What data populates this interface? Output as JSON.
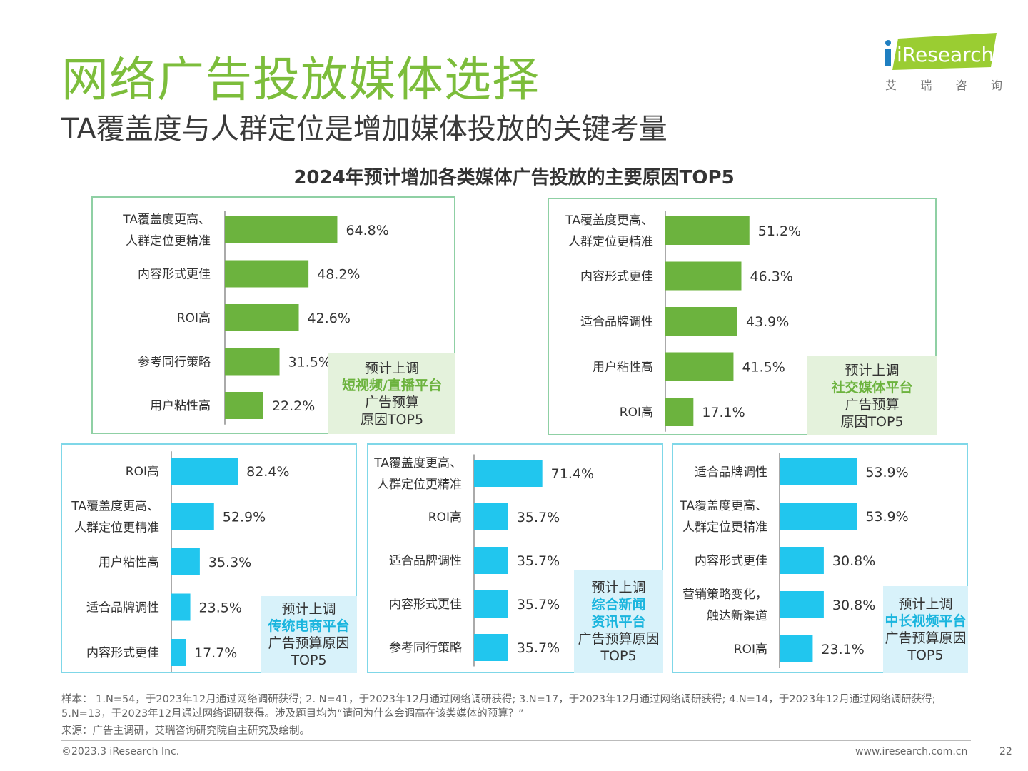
{
  "page": {
    "title": "网络广告投放媒体选择",
    "subtitle": "TA覆盖度与人群定位是增加媒体投放的关键考量",
    "logo": {
      "brand": "iResearch",
      "cn": [
        "艾",
        "瑞",
        "咨",
        "询"
      ]
    },
    "footnote": "样本： 1.N=54，于2023年12月通过网络调研获得; 2. N=41，于2023年12月通过网络调研获得; 3.N=17，于2023年12月通过网络调研获得; 4.N=14，于2023年12月通过网络调研获得; 5.N=13，于2023年12月通过网络调研获得。涉及题目均为“请问为什么会调高在该类媒体的预算？”",
    "source": "来源：广告主调研，艾瑞咨询研究院自主研究及绘制。",
    "copyright": "©2023.3 iResearch Inc.",
    "url": "www.iresearch.com.cn",
    "page_number": "22"
  },
  "colors": {
    "green": "#6cb33e",
    "blue": "#21c6ee",
    "title_green": "#7cbd3b"
  },
  "chart_data": [
    {
      "type": "bar",
      "title": "2024年预计增加各类媒体广告投放的主要原因TOP5",
      "panel": "green",
      "categories": [
        "TA覆盖度更高、\n人群定位更精准",
        "内容形式更佳",
        "ROI高",
        "参考同行策略",
        "用户粘性高"
      ],
      "values": [
        64.8,
        48.2,
        42.6,
        31.5,
        22.2
      ],
      "value_labels": [
        "64.8%",
        "48.2%",
        "42.6%",
        "31.5%",
        "22.2%"
      ],
      "xlim": [
        0,
        100
      ],
      "note": {
        "pre": "预计上调",
        "highlight": "短视频/直播平台",
        "post": [
          "广告预算",
          "原因TOP5"
        ]
      }
    },
    {
      "type": "bar",
      "panel": "green",
      "categories": [
        "TA覆盖度更高、\n人群定位更精准",
        "内容形式更佳",
        "适合品牌调性",
        "用户粘性高",
        "ROI高"
      ],
      "values": [
        51.2,
        46.3,
        43.9,
        41.5,
        17.1
      ],
      "value_labels": [
        "51.2%",
        "46.3%",
        "43.9%",
        "41.5%",
        "17.1%"
      ],
      "xlim": [
        0,
        100
      ],
      "note": {
        "pre": "预计上调",
        "highlight": "社交媒体平台",
        "post": [
          "广告预算",
          "原因TOP5"
        ]
      }
    },
    {
      "type": "bar",
      "panel": "blue",
      "categories": [
        "ROI高",
        "TA覆盖度更高、\n人群定位更精准",
        "用户粘性高",
        "适合品牌调性",
        "内容形式更佳"
      ],
      "values": [
        82.4,
        52.9,
        35.3,
        23.5,
        17.7
      ],
      "value_labels": [
        "82.4%",
        "52.9%",
        "35.3%",
        "23.5%",
        "17.7%"
      ],
      "xlim": [
        0,
        100
      ],
      "note": {
        "pre": "预计上调",
        "highlight": "传统电商平台",
        "post": [
          "广告预算原因",
          "TOP5"
        ]
      }
    },
    {
      "type": "bar",
      "panel": "blue",
      "categories": [
        "TA覆盖度更高、\n人群定位更精准",
        "ROI高",
        "适合品牌调性",
        "内容形式更佳",
        "参考同行策略"
      ],
      "values": [
        71.4,
        35.7,
        35.7,
        35.7,
        35.7
      ],
      "value_labels": [
        "71.4%",
        "35.7%",
        "35.7%",
        "35.7%",
        "35.7%"
      ],
      "xlim": [
        0,
        100
      ],
      "note": {
        "pre": "预计上调",
        "highlight": "综合新闻\n资讯平台",
        "post": [
          "广告预算原因",
          "TOP5"
        ]
      }
    },
    {
      "type": "bar",
      "panel": "blue",
      "categories": [
        "适合品牌调性",
        "TA覆盖度更高、\n人群定位更精准",
        "内容形式更佳",
        "营销策略变化，\n触达新渠道",
        "ROI高"
      ],
      "values": [
        53.9,
        53.9,
        30.8,
        30.8,
        23.1
      ],
      "value_labels": [
        "53.9%",
        "53.9%",
        "30.8%",
        "30.8%",
        "23.1%"
      ],
      "xlim": [
        0,
        100
      ],
      "note": {
        "pre": "预计上调",
        "highlight": "中长视频平台",
        "post": [
          "广告预算原因",
          "TOP5"
        ]
      }
    }
  ]
}
